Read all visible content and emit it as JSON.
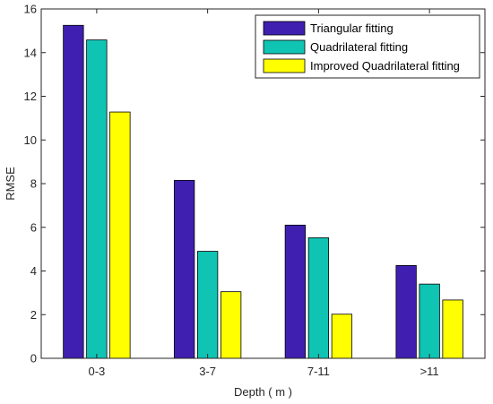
{
  "chart_data": {
    "type": "bar",
    "title": "",
    "xlabel": "Depth ( m )",
    "ylabel": "RMSE",
    "categories": [
      "0-3",
      "3-7",
      "7-11",
      ">11"
    ],
    "ylim": [
      0,
      16
    ],
    "yticks": [
      0,
      2,
      4,
      6,
      8,
      10,
      12,
      14,
      16
    ],
    "grid": false,
    "legend_position": "top-right",
    "series": [
      {
        "name": "Triangular fitting",
        "color": "#3f1fb0",
        "values": [
          15.25,
          8.15,
          6.1,
          4.25
        ]
      },
      {
        "name": "Quadrilateral fitting",
        "color": "#10c4b4",
        "values": [
          14.58,
          4.9,
          5.52,
          3.4
        ]
      },
      {
        "name": "Improved Quadrilateral fitting",
        "color": "#ffff00",
        "values": [
          11.28,
          3.05,
          2.02,
          2.67
        ]
      }
    ]
  }
}
